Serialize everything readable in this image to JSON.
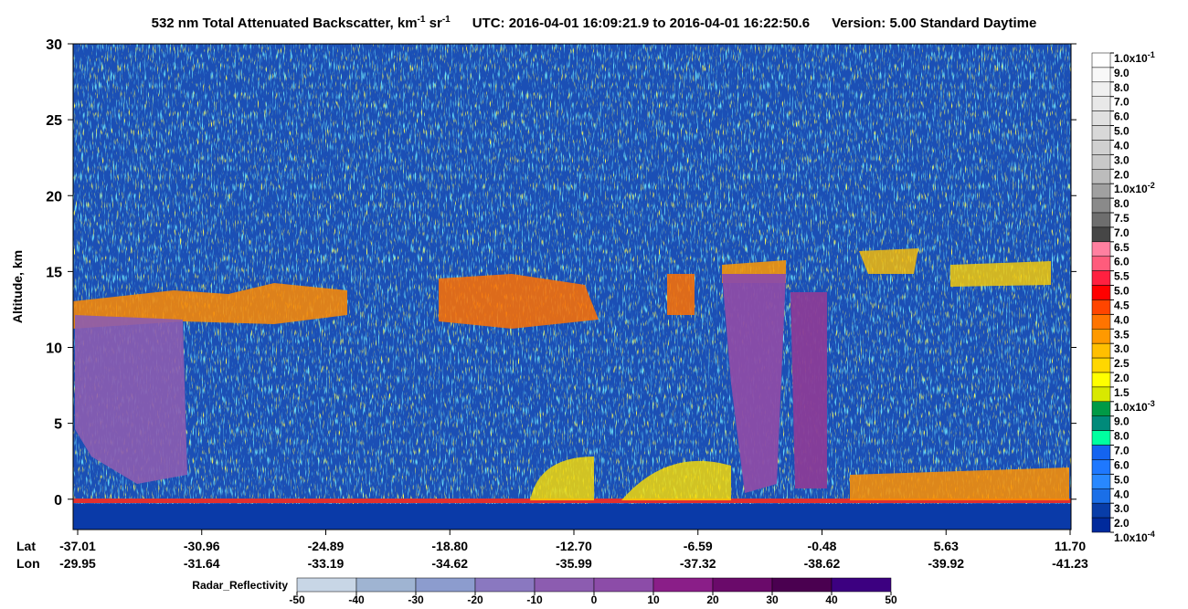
{
  "chart_data": {
    "type": "curtain",
    "title_parts": [
      "532 nm Total Attenuated Backscatter, km",
      "-1",
      " sr",
      "-1"
    ],
    "time_range": "UTC:  2016-04-01 16:09:21.9  to  2016-04-01 16:22:50.6",
    "version": "Version: 5.00  Standard  Daytime",
    "ylabel": "Altitude, km",
    "ylim": [
      -2,
      30
    ],
    "yticks": [
      0,
      5,
      10,
      15,
      20,
      25,
      30
    ],
    "x_row_names": [
      "Lat",
      "Lon"
    ],
    "lat": [
      "-37.01",
      "-30.96",
      "-24.89",
      "-18.80",
      "-12.70",
      "-6.59",
      "-0.48",
      "5.63",
      "11.70"
    ],
    "lon": [
      "-29.95",
      "-31.64",
      "-33.19",
      "-34.62",
      "-35.99",
      "-37.32",
      "-38.62",
      "-39.92",
      "-41.23"
    ],
    "colorbar_labels": [
      {
        "text": "1.0x10",
        "exponent": "-1"
      },
      "9.0",
      "8.0",
      "7.0",
      "6.0",
      "5.0",
      "4.0",
      "3.0",
      "2.0",
      {
        "text": "1.0x10",
        "exponent": "-2"
      },
      "8.0",
      "7.5",
      "7.0",
      "6.5",
      "6.0",
      "5.5",
      "5.0",
      "4.5",
      "4.0",
      "3.5",
      "3.0",
      "2.5",
      "2.0",
      "1.5",
      {
        "text": "1.0x10",
        "exponent": "-3"
      },
      "9.0",
      "8.0",
      "7.0",
      "6.0",
      "5.0",
      "4.0",
      "3.0",
      "2.0",
      {
        "text": "1.0x10",
        "exponent": "-4"
      }
    ],
    "colorbar_colors": [
      "#ffffff",
      "#f8f8f8",
      "#f0f0f0",
      "#e8e8e8",
      "#e0e0e0",
      "#d8d8d8",
      "#d0d0d0",
      "#c8c8c8",
      "#bcbcbc",
      "#a0a0a0",
      "#8a8a8a",
      "#6e6e6e",
      "#464646",
      "#ff80a0",
      "#ff5c7c",
      "#ff2040",
      "#ff0000",
      "#ff4500",
      "#ff7400",
      "#ff9900",
      "#ffbf00",
      "#ffd700",
      "#ffff00",
      "#d8e800",
      "#009a46",
      "#008a7a",
      "#00ffa0",
      "#1464f0",
      "#1e78ff",
      "#2888ff",
      "#1a6fe8",
      "#083da8",
      "#002a9c"
    ],
    "radar_label": "Radar_Reflectivity",
    "radar_lim": [
      -50,
      50
    ],
    "radar_ticks": [
      -50,
      -40,
      -30,
      -20,
      -10,
      0,
      10,
      20,
      30,
      40,
      50
    ],
    "radar_colors": [
      "#c8d6e6",
      "#9fb4d2",
      "#8c9cce",
      "#8a78c0",
      "#8c5cb0",
      "#8c4ca8",
      "#8a1e88",
      "#6a0a6a",
      "#4a0050",
      "#3c0080"
    ]
  }
}
